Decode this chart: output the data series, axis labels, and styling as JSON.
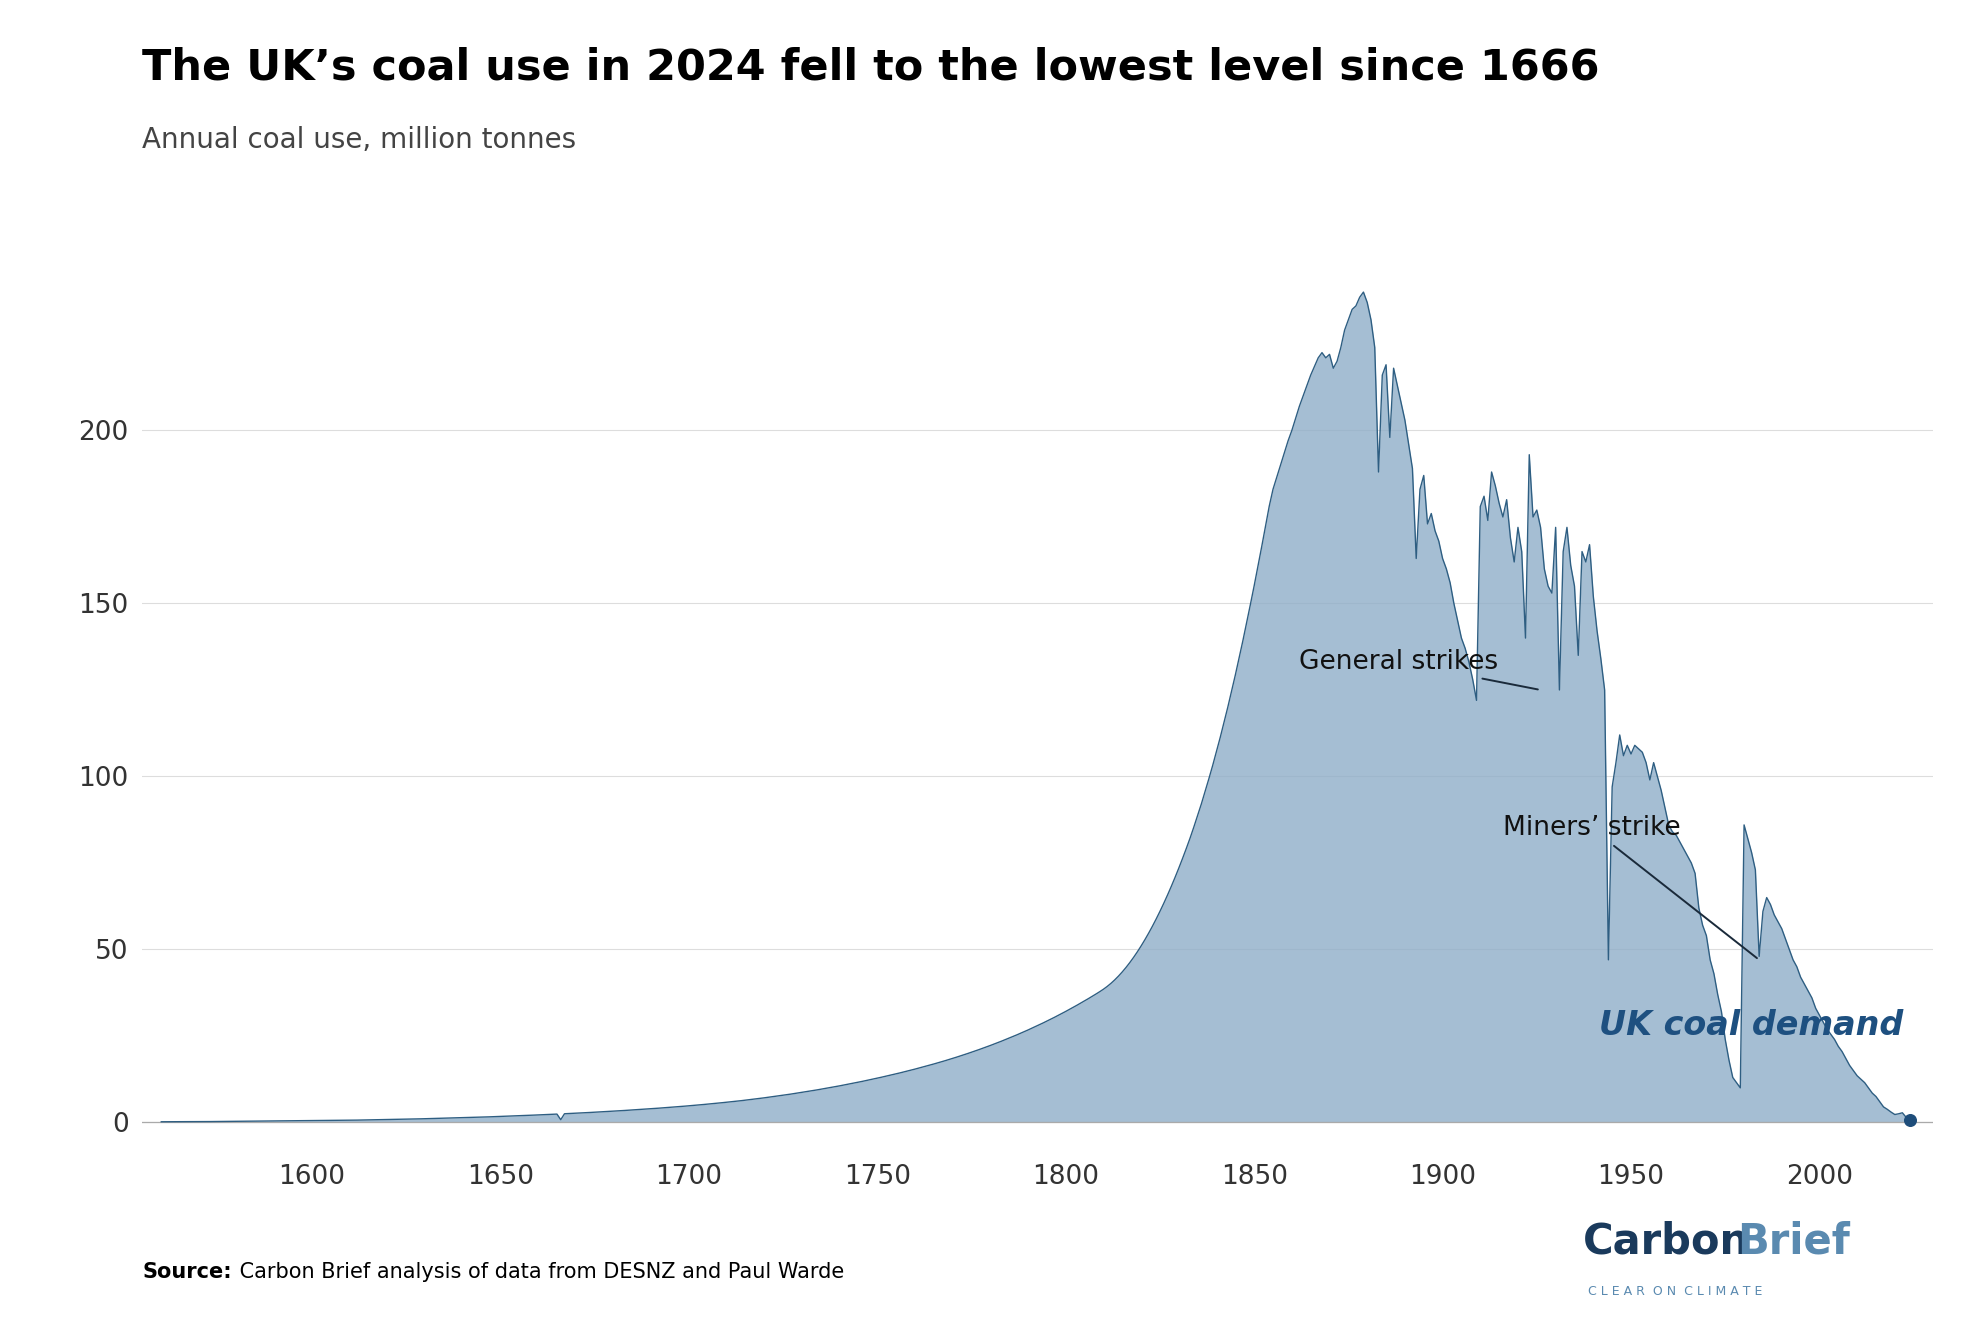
{
  "title": "The UK’s coal use in 2024 fell to the lowest level since 1666",
  "subtitle": "Annual coal use, million tonnes",
  "fill_color": "#8faec8",
  "fill_alpha": 0.8,
  "line_color": "#2e5e82",
  "line_width": 1.0,
  "dot_color": "#1e4d7a",
  "dot_size": 70,
  "area_label": "UK coal demand",
  "area_label_color": "#1e5080",
  "annotation_general_strikes_text": "General strikes",
  "annotation_miners_strike_text": "Miners’ strike",
  "source_bold": "Source:",
  "source_rest": " Carbon Brief analysis of data from DESNZ and Paul Warde",
  "carbonbrief_dark": "#1a3a5c",
  "carbonbrief_light": "#5a8ab0",
  "carbonbrief_sub": "CLEAR ON CLIMATE",
  "xlim": [
    1555,
    2030
  ],
  "ylim": [
    -8,
    248
  ],
  "yticks": [
    0,
    50,
    100,
    150,
    200
  ],
  "xticks": [
    1600,
    1650,
    1700,
    1750,
    1800,
    1850,
    1900,
    1950,
    2000
  ],
  "background_color": "#ffffff",
  "years": [
    1560,
    1561,
    1562,
    1563,
    1564,
    1565,
    1566,
    1567,
    1568,
    1569,
    1570,
    1571,
    1572,
    1573,
    1574,
    1575,
    1576,
    1577,
    1578,
    1579,
    1580,
    1581,
    1582,
    1583,
    1584,
    1585,
    1586,
    1587,
    1588,
    1589,
    1590,
    1591,
    1592,
    1593,
    1594,
    1595,
    1596,
    1597,
    1598,
    1599,
    1600,
    1601,
    1602,
    1603,
    1604,
    1605,
    1606,
    1607,
    1608,
    1609,
    1610,
    1611,
    1612,
    1613,
    1614,
    1615,
    1616,
    1617,
    1618,
    1619,
    1620,
    1621,
    1622,
    1623,
    1624,
    1625,
    1626,
    1627,
    1628,
    1629,
    1630,
    1631,
    1632,
    1633,
    1634,
    1635,
    1636,
    1637,
    1638,
    1639,
    1640,
    1641,
    1642,
    1643,
    1644,
    1645,
    1646,
    1647,
    1648,
    1649,
    1650,
    1651,
    1652,
    1653,
    1654,
    1655,
    1656,
    1657,
    1658,
    1659,
    1660,
    1661,
    1662,
    1663,
    1664,
    1665,
    1666,
    1667,
    1668,
    1669,
    1670,
    1671,
    1672,
    1673,
    1674,
    1675,
    1676,
    1677,
    1678,
    1679,
    1680,
    1681,
    1682,
    1683,
    1684,
    1685,
    1686,
    1687,
    1688,
    1689,
    1690,
    1691,
    1692,
    1693,
    1694,
    1695,
    1696,
    1697,
    1698,
    1699,
    1700,
    1701,
    1702,
    1703,
    1704,
    1705,
    1706,
    1707,
    1708,
    1709,
    1710,
    1711,
    1712,
    1713,
    1714,
    1715,
    1716,
    1717,
    1718,
    1719,
    1720,
    1721,
    1722,
    1723,
    1724,
    1725,
    1726,
    1727,
    1728,
    1729,
    1730,
    1731,
    1732,
    1733,
    1734,
    1735,
    1736,
    1737,
    1738,
    1739,
    1740,
    1741,
    1742,
    1743,
    1744,
    1745,
    1746,
    1747,
    1748,
    1749,
    1750,
    1751,
    1752,
    1753,
    1754,
    1755,
    1756,
    1757,
    1758,
    1759,
    1760,
    1761,
    1762,
    1763,
    1764,
    1765,
    1766,
    1767,
    1768,
    1769,
    1770,
    1771,
    1772,
    1773,
    1774,
    1775,
    1776,
    1777,
    1778,
    1779,
    1780,
    1781,
    1782,
    1783,
    1784,
    1785,
    1786,
    1787,
    1788,
    1789,
    1790,
    1791,
    1792,
    1793,
    1794,
    1795,
    1796,
    1797,
    1798,
    1799,
    1800,
    1801,
    1802,
    1803,
    1804,
    1805,
    1806,
    1807,
    1808,
    1809,
    1810,
    1811,
    1812,
    1813,
    1814,
    1815,
    1816,
    1817,
    1818,
    1819,
    1820,
    1821,
    1822,
    1823,
    1824,
    1825,
    1826,
    1827,
    1828,
    1829,
    1830,
    1831,
    1832,
    1833,
    1834,
    1835,
    1836,
    1837,
    1838,
    1839,
    1840,
    1841,
    1842,
    1843,
    1844,
    1845,
    1846,
    1847,
    1848,
    1849,
    1850,
    1851,
    1852,
    1853,
    1854,
    1855,
    1856,
    1857,
    1858,
    1859,
    1860,
    1861,
    1862,
    1863,
    1864,
    1865,
    1866,
    1867,
    1868,
    1869,
    1870,
    1871,
    1872,
    1873,
    1874,
    1875,
    1876,
    1877,
    1878,
    1879,
    1880,
    1881,
    1882,
    1883,
    1884,
    1885,
    1886,
    1887,
    1888,
    1889,
    1890,
    1891,
    1892,
    1893,
    1894,
    1895,
    1896,
    1897,
    1898,
    1899,
    1900,
    1901,
    1902,
    1903,
    1904,
    1905,
    1906,
    1907,
    1908,
    1909,
    1910,
    1911,
    1912,
    1913,
    1914,
    1915,
    1916,
    1917,
    1918,
    1919,
    1920,
    1921,
    1922,
    1923,
    1924,
    1925,
    1926,
    1927,
    1928,
    1929,
    1930,
    1931,
    1932,
    1933,
    1934,
    1935,
    1936,
    1937,
    1938,
    1939,
    1940,
    1941,
    1942,
    1943,
    1944,
    1945,
    1946,
    1947,
    1948,
    1949,
    1950,
    1951,
    1952,
    1953,
    1954,
    1955,
    1956,
    1957,
    1958,
    1959,
    1960,
    1961,
    1962,
    1963,
    1964,
    1965,
    1966,
    1967,
    1968,
    1969,
    1970,
    1971,
    1972,
    1973,
    1974,
    1975,
    1976,
    1977,
    1978,
    1979,
    1980,
    1981,
    1982,
    1983,
    1984,
    1985,
    1986,
    1987,
    1988,
    1989,
    1990,
    1991,
    1992,
    1993,
    1994,
    1995,
    1996,
    1997,
    1998,
    1999,
    2000,
    2001,
    2002,
    2003,
    2004,
    2005,
    2006,
    2007,
    2008,
    2009,
    2010,
    2011,
    2012,
    2013,
    2014,
    2015,
    2016,
    2017,
    2018,
    2019,
    2020,
    2021,
    2022,
    2023,
    2024
  ],
  "values": [
    0.2,
    0.21,
    0.21,
    0.22,
    0.22,
    0.22,
    0.23,
    0.23,
    0.24,
    0.24,
    0.25,
    0.25,
    0.26,
    0.26,
    0.27,
    0.27,
    0.28,
    0.28,
    0.29,
    0.3,
    0.31,
    0.31,
    0.32,
    0.33,
    0.34,
    0.35,
    0.36,
    0.37,
    0.38,
    0.39,
    0.4,
    0.41,
    0.42,
    0.43,
    0.44,
    0.45,
    0.46,
    0.47,
    0.48,
    0.5,
    0.51,
    0.52,
    0.53,
    0.54,
    0.56,
    0.57,
    0.59,
    0.6,
    0.62,
    0.63,
    0.65,
    0.67,
    0.68,
    0.7,
    0.72,
    0.74,
    0.76,
    0.78,
    0.8,
    0.82,
    0.84,
    0.86,
    0.88,
    0.9,
    0.93,
    0.95,
    0.97,
    1.0,
    1.02,
    1.05,
    1.08,
    1.1,
    1.13,
    1.16,
    1.19,
    1.22,
    1.25,
    1.28,
    1.31,
    1.34,
    1.37,
    1.41,
    1.44,
    1.47,
    1.51,
    1.55,
    1.59,
    1.62,
    1.66,
    1.7,
    1.74,
    1.78,
    1.83,
    1.87,
    1.91,
    1.95,
    2.0,
    2.04,
    2.09,
    2.13,
    2.18,
    2.22,
    2.27,
    2.32,
    2.37,
    2.42,
    0.8,
    2.52,
    2.57,
    2.62,
    2.67,
    2.73,
    2.78,
    2.84,
    2.9,
    2.96,
    3.02,
    3.08,
    3.14,
    3.21,
    3.27,
    3.34,
    3.4,
    3.47,
    3.54,
    3.61,
    3.68,
    3.75,
    3.82,
    3.9,
    3.97,
    4.05,
    4.13,
    4.21,
    4.29,
    4.37,
    4.45,
    4.54,
    4.63,
    4.72,
    4.81,
    4.9,
    5.0,
    5.1,
    5.2,
    5.3,
    5.4,
    5.51,
    5.62,
    5.73,
    5.84,
    5.95,
    6.07,
    6.19,
    6.31,
    6.44,
    6.57,
    6.71,
    6.85,
    6.98,
    7.12,
    7.27,
    7.42,
    7.57,
    7.72,
    7.87,
    8.03,
    8.19,
    8.36,
    8.53,
    8.7,
    8.87,
    9.05,
    9.23,
    9.41,
    9.6,
    9.79,
    9.98,
    10.18,
    10.38,
    10.58,
    10.79,
    11.0,
    11.21,
    11.43,
    11.65,
    11.87,
    12.1,
    12.33,
    12.56,
    12.8,
    13.05,
    13.3,
    13.55,
    13.8,
    14.06,
    14.32,
    14.59,
    14.86,
    15.14,
    15.42,
    15.71,
    16.0,
    16.3,
    16.6,
    16.9,
    17.21,
    17.53,
    17.85,
    18.18,
    18.52,
    18.86,
    19.21,
    19.57,
    19.93,
    20.3,
    20.68,
    21.06,
    21.45,
    21.85,
    22.25,
    22.66,
    23.08,
    23.51,
    23.95,
    24.39,
    24.84,
    25.3,
    25.77,
    26.25,
    26.73,
    27.23,
    27.73,
    28.24,
    28.76,
    29.29,
    29.83,
    30.38,
    30.94,
    31.51,
    32.09,
    32.68,
    33.28,
    33.89,
    34.51,
    35.14,
    35.78,
    36.43,
    37.1,
    37.78,
    38.5,
    39.3,
    40.2,
    41.2,
    42.3,
    43.5,
    44.8,
    46.2,
    47.7,
    49.3,
    51.0,
    52.8,
    54.7,
    56.7,
    58.8,
    61.0,
    63.3,
    65.7,
    68.2,
    70.8,
    73.5,
    76.3,
    79.2,
    82.2,
    85.4,
    88.7,
    92.1,
    95.7,
    99.4,
    103.2,
    107.2,
    111.3,
    115.6,
    120.0,
    124.6,
    129.3,
    134.2,
    139.2,
    144.4,
    149.7,
    155.1,
    160.7,
    166.4,
    172.2,
    178.1,
    183.0,
    186.5,
    190.0,
    193.5,
    197.0,
    200.0,
    203.5,
    207.0,
    210.0,
    213.0,
    216.0,
    218.5,
    221.0,
    222.5,
    221.0,
    222.0,
    218.0,
    220.0,
    224.0,
    229.0,
    232.0,
    235.0,
    236.0,
    238.5,
    240.0,
    237.0,
    232.0,
    224.0,
    188.0,
    216.0,
    219.0,
    198.0,
    218.0,
    213.0,
    208.0,
    203.0,
    196.0,
    189.0,
    163.0,
    183.0,
    187.0,
    173.0,
    176.0,
    171.0,
    168.0,
    163.0,
    160.0,
    156.0,
    150.0,
    145.0,
    140.0,
    137.0,
    133.0,
    128.0,
    122.0,
    178.0,
    181.0,
    174.0,
    188.0,
    184.0,
    179.0,
    175.0,
    180.0,
    169.0,
    162.0,
    172.0,
    165.0,
    140.0,
    193.0,
    175.0,
    177.0,
    172.0,
    160.0,
    155.0,
    153.0,
    172.0,
    125.0,
    165.0,
    172.0,
    161.0,
    155.0,
    135.0,
    165.0,
    162.0,
    167.0,
    152.0,
    142.0,
    134.0,
    125.0,
    47.0,
    97.0,
    104.0,
    112.0,
    106.0,
    109.0,
    106.5,
    109.0,
    108.0,
    107.0,
    104.0,
    99.0,
    104.0,
    100.0,
    96.0,
    91.0,
    86.0,
    84.0,
    83.0,
    81.0,
    79.0,
    77.0,
    75.0,
    72.0,
    62.0,
    57.0,
    54.0,
    47.0,
    43.0,
    37.0,
    32.0,
    24.0,
    18.0,
    13.0,
    11.5,
    10.0,
    86.0,
    82.0,
    78.0,
    73.0,
    48.0,
    61.0,
    65.0,
    63.0,
    60.0,
    58.0,
    56.0,
    53.0,
    50.0,
    47.0,
    45.0,
    42.0,
    40.0,
    38.0,
    36.0,
    33.0,
    31.0,
    29.0,
    27.0,
    25.5,
    24.0,
    22.0,
    20.5,
    18.5,
    16.5,
    15.0,
    13.5,
    12.5,
    11.5,
    10.0,
    8.5,
    7.5,
    6.0,
    4.5,
    3.8,
    3.0,
    2.3,
    2.5,
    2.8,
    1.5,
    0.8
  ]
}
